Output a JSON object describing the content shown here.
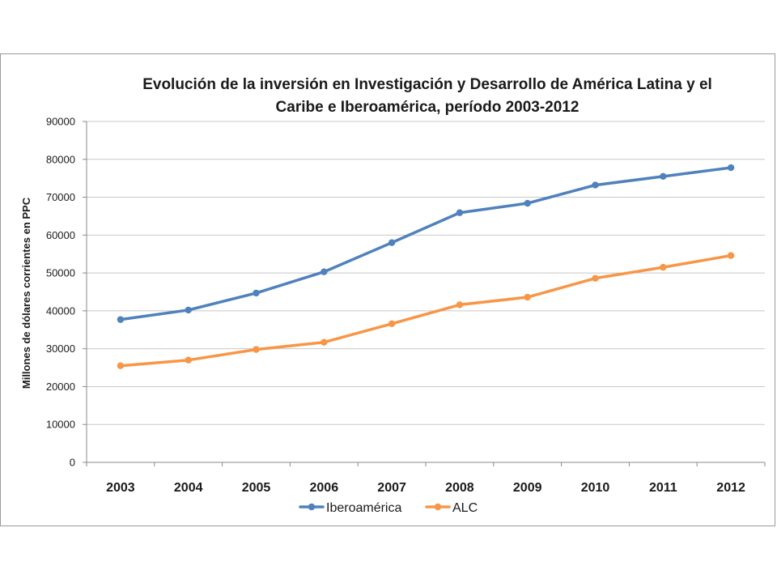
{
  "chart_data": {
    "type": "line",
    "title_lines": [
      "Evolución de la inversión en Investigación y Desarrollo de América Latina y el",
      "Caribe e Iberoamérica, período 2003-2012"
    ],
    "xlabel": "",
    "ylabel": "Millones de dólares corrientes en PPC",
    "x": [
      "2003",
      "2004",
      "2005",
      "2006",
      "2007",
      "2008",
      "2009",
      "2010",
      "2011",
      "2012"
    ],
    "ylim": [
      0,
      90000
    ],
    "yticks": [
      "0",
      "10000",
      "20000",
      "30000",
      "40000",
      "50000",
      "60000",
      "70000",
      "80000",
      "90000"
    ],
    "grid": true,
    "legend_position": "bottom",
    "series": [
      {
        "name": "Iberoamérica",
        "color": "#4f81bd",
        "values": [
          37700,
          40200,
          44700,
          50300,
          58000,
          65900,
          68400,
          73200,
          75500,
          77800
        ]
      },
      {
        "name": "ALC",
        "color": "#f79646",
        "values": [
          25500,
          27000,
          29800,
          31700,
          36600,
          41600,
          43600,
          48600,
          51500,
          54600
        ]
      }
    ]
  }
}
